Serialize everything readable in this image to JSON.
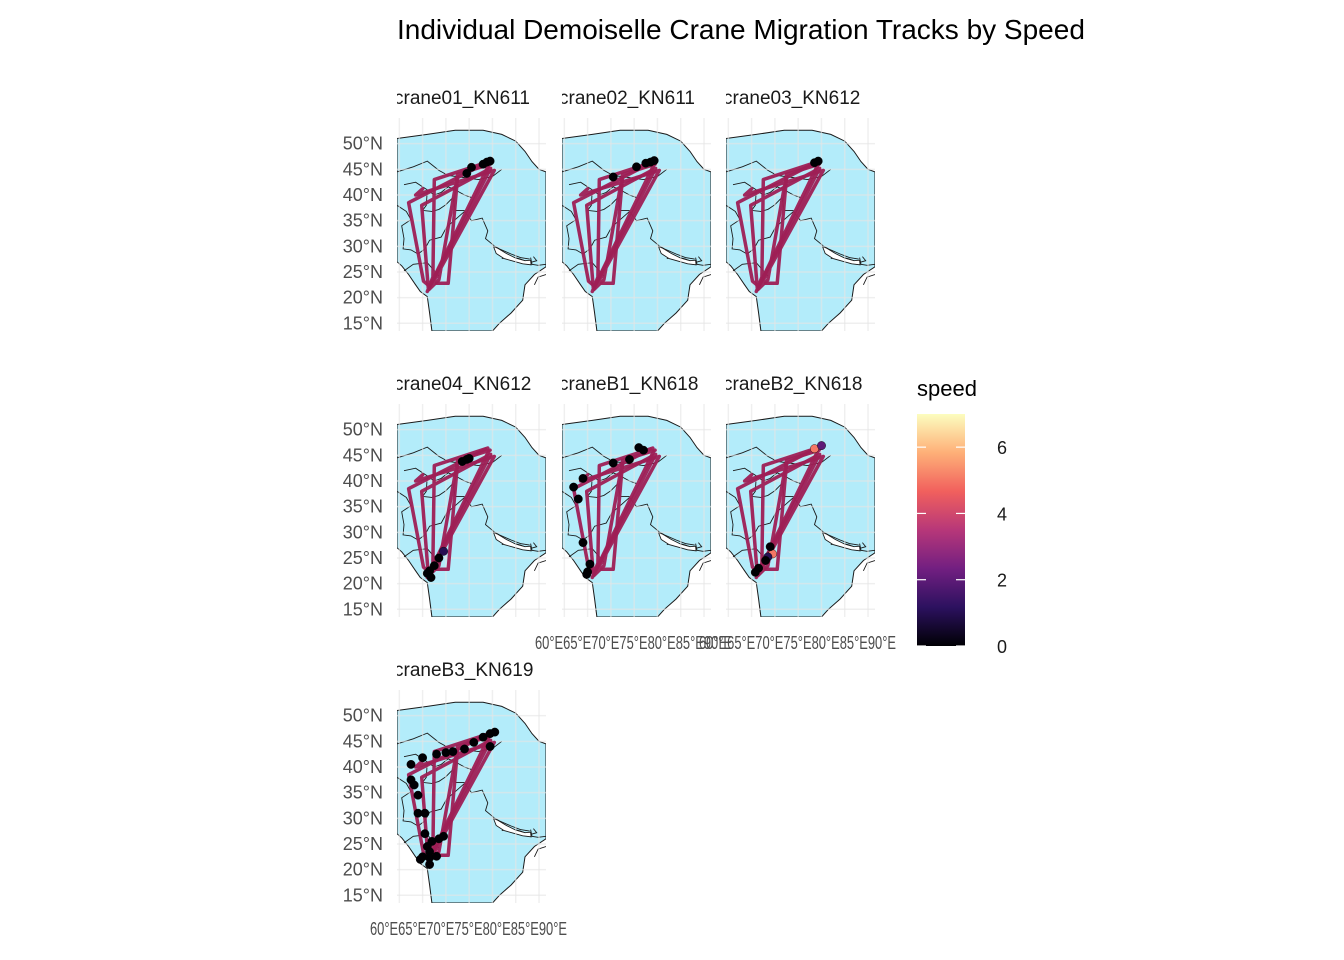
{
  "chart_data": {
    "type": "map-faceted",
    "title": "Individual Demoiselle Crane Migration Tracks by Speed",
    "colors": {
      "land": "#b3ecfa",
      "country_border": "#1a1a1a",
      "grid": "#e6e6e6",
      "track": "#9e1f55",
      "background": "#ffffff"
    },
    "y_ticks": [
      {
        "value": 15,
        "label": "15°N"
      },
      {
        "value": 20,
        "label": "20°N"
      },
      {
        "value": 25,
        "label": "25°N"
      },
      {
        "value": 30,
        "label": "30°N"
      },
      {
        "value": 35,
        "label": "35°N"
      },
      {
        "value": 40,
        "label": "40°N"
      },
      {
        "value": 45,
        "label": "45°N"
      },
      {
        "value": 50,
        "label": "50°N"
      }
    ],
    "x_tick_label": "60°E65°E70°E75°E80°E85°E90°E",
    "legend": {
      "title": "speed",
      "ticks": [
        0,
        2,
        4,
        6
      ],
      "range": [
        0,
        7
      ],
      "colormap": [
        "#000004",
        "#2c115f",
        "#721f81",
        "#b73779",
        "#f1605d",
        "#feb078",
        "#fcfdbf"
      ]
    },
    "panels": [
      {
        "label": "crane01_KN611",
        "points": [
          {
            "lon": 74.5,
            "lat": 44.2,
            "speed": 0
          },
          {
            "lon": 75.5,
            "lat": 45.4,
            "speed": 0
          },
          {
            "lon": 78,
            "lat": 46,
            "speed": 0
          },
          {
            "lon": 78.8,
            "lat": 46.4,
            "speed": 0
          },
          {
            "lon": 79.5,
            "lat": 46.6,
            "speed": 0
          }
        ]
      },
      {
        "label": "crane02_KN611",
        "points": [
          {
            "lon": 70.5,
            "lat": 43.5,
            "speed": 0
          },
          {
            "lon": 75.5,
            "lat": 45.5,
            "speed": 0
          },
          {
            "lon": 77.5,
            "lat": 46.2,
            "speed": 0
          },
          {
            "lon": 78.5,
            "lat": 46.4,
            "speed": 0
          },
          {
            "lon": 79.3,
            "lat": 46.7,
            "speed": 0
          }
        ]
      },
      {
        "label": "crane03_KN612",
        "points": [
          {
            "lon": 78.5,
            "lat": 46.3,
            "speed": 0
          },
          {
            "lon": 79.3,
            "lat": 46.6,
            "speed": 0
          }
        ]
      },
      {
        "label": "crane04_KN612",
        "points": [
          {
            "lon": 73.5,
            "lat": 43.8,
            "speed": 0
          },
          {
            "lon": 74.5,
            "lat": 44.2,
            "speed": 0
          },
          {
            "lon": 75,
            "lat": 44.4,
            "speed": 0
          },
          {
            "lon": 69.5,
            "lat": 26.3,
            "speed": 1
          },
          {
            "lon": 68.5,
            "lat": 25,
            "speed": 0
          },
          {
            "lon": 67.5,
            "lat": 23.5,
            "speed": 0
          },
          {
            "lon": 66.5,
            "lat": 22.5,
            "speed": 0
          },
          {
            "lon": 66,
            "lat": 22,
            "speed": 0
          },
          {
            "lon": 66.8,
            "lat": 21.2,
            "speed": 0
          }
        ]
      },
      {
        "label": "craneB1_KN618",
        "points": [
          {
            "lon": 62,
            "lat": 38.8,
            "speed": 0
          },
          {
            "lon": 64,
            "lat": 40.5,
            "speed": 0
          },
          {
            "lon": 63,
            "lat": 36.5,
            "speed": 0
          },
          {
            "lon": 64,
            "lat": 28,
            "speed": 0
          },
          {
            "lon": 65.5,
            "lat": 23.8,
            "speed": 0
          },
          {
            "lon": 65,
            "lat": 22.3,
            "speed": 0
          },
          {
            "lon": 64.8,
            "lat": 21.8,
            "speed": 0
          },
          {
            "lon": 70.5,
            "lat": 43.5,
            "speed": 0
          },
          {
            "lon": 74,
            "lat": 44.2,
            "speed": 0
          },
          {
            "lon": 76,
            "lat": 46.5,
            "speed": 0
          },
          {
            "lon": 77,
            "lat": 46,
            "speed": 0
          }
        ]
      },
      {
        "label": "craneB2_KN618",
        "points": [
          {
            "lon": 78.5,
            "lat": 46.3,
            "speed": 5
          },
          {
            "lon": 80,
            "lat": 46.9,
            "speed": 2
          },
          {
            "lon": 69.5,
            "lat": 25.8,
            "speed": 5
          },
          {
            "lon": 68.5,
            "lat": 25.2,
            "speed": 1
          },
          {
            "lon": 69,
            "lat": 27.2,
            "speed": 0
          },
          {
            "lon": 68,
            "lat": 24.5,
            "speed": 0
          },
          {
            "lon": 66.5,
            "lat": 23,
            "speed": 0
          },
          {
            "lon": 65.8,
            "lat": 22.2,
            "speed": 0
          }
        ]
      },
      {
        "label": "craneB3_KN619",
        "points": [
          {
            "lon": 62.5,
            "lat": 40.5,
            "speed": 0
          },
          {
            "lon": 65,
            "lat": 41.8,
            "speed": 0
          },
          {
            "lon": 68,
            "lat": 42.5,
            "speed": 0
          },
          {
            "lon": 70,
            "lat": 42.8,
            "speed": 0
          },
          {
            "lon": 71.5,
            "lat": 43,
            "speed": 0
          },
          {
            "lon": 74,
            "lat": 43.5,
            "speed": 0
          },
          {
            "lon": 76,
            "lat": 44.8,
            "speed": 0
          },
          {
            "lon": 78,
            "lat": 45.8,
            "speed": 0
          },
          {
            "lon": 79.5,
            "lat": 46.5,
            "speed": 0
          },
          {
            "lon": 80.5,
            "lat": 46.8,
            "speed": 0
          },
          {
            "lon": 79.5,
            "lat": 44,
            "speed": 0
          },
          {
            "lon": 62.5,
            "lat": 37.5,
            "speed": 0
          },
          {
            "lon": 63.2,
            "lat": 36.5,
            "speed": 0
          },
          {
            "lon": 64,
            "lat": 34.5,
            "speed": 0
          },
          {
            "lon": 64,
            "lat": 31,
            "speed": 0
          },
          {
            "lon": 65.5,
            "lat": 31,
            "speed": 0
          },
          {
            "lon": 65.5,
            "lat": 27,
            "speed": 0
          },
          {
            "lon": 67,
            "lat": 25.5,
            "speed": 0
          },
          {
            "lon": 68.5,
            "lat": 26,
            "speed": 0
          },
          {
            "lon": 69.5,
            "lat": 26.5,
            "speed": 0
          },
          {
            "lon": 66,
            "lat": 24.5,
            "speed": 0
          },
          {
            "lon": 66.5,
            "lat": 23.5,
            "speed": 0
          },
          {
            "lon": 65,
            "lat": 22.5,
            "speed": 0
          },
          {
            "lon": 66.5,
            "lat": 22.3,
            "speed": 0
          },
          {
            "lon": 68,
            "lat": 22.6,
            "speed": 0
          },
          {
            "lon": 64.5,
            "lat": 22,
            "speed": 0
          },
          {
            "lon": 66.5,
            "lat": 21,
            "speed": 0
          }
        ]
      }
    ],
    "track_routes": [
      [
        [
          78.5,
          46.2
        ],
        [
          62,
          38.5
        ],
        [
          65.2,
          23.2
        ],
        [
          66.5,
          22.2
        ],
        [
          79.2,
          45.8
        ]
      ],
      [
        [
          79,
          46.4
        ],
        [
          67.5,
          43
        ],
        [
          67.2,
          24
        ],
        [
          66,
          21.2
        ],
        [
          79.6,
          45.2
        ],
        [
          64.8,
          38
        ],
        [
          66.2,
          22
        ]
      ],
      [
        [
          79.5,
          46
        ],
        [
          72.5,
          44
        ],
        [
          68.5,
          23.5
        ],
        [
          66.4,
          21.6
        ],
        [
          80.4,
          44.8
        ],
        [
          63.5,
          40
        ],
        [
          65,
          41.2
        ]
      ],
      [
        [
          72.5,
          43.4
        ],
        [
          70.5,
          22.8
        ],
        [
          68,
          22.8
        ]
      ]
    ]
  }
}
